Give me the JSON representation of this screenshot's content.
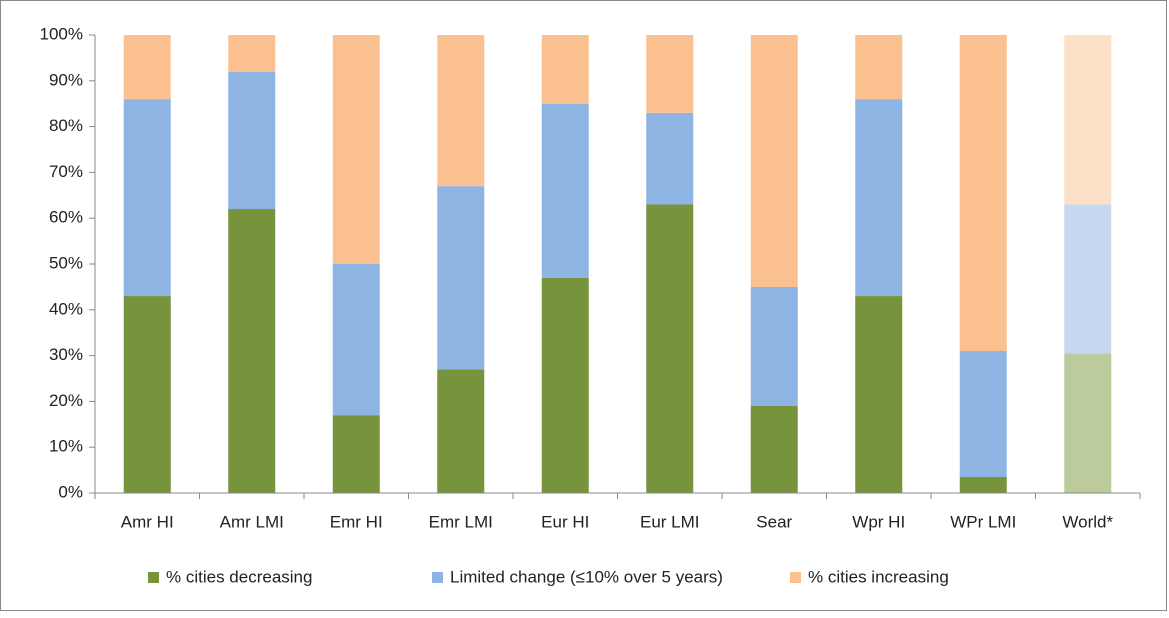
{
  "chart_data": {
    "type": "stacked_bar",
    "categories": [
      "Amr HI",
      "Amr LMI",
      "Emr HI",
      "Emr LMI",
      "Eur HI",
      "Eur LMI",
      "Sear",
      "Wpr HI",
      "WPr LMI",
      "World*"
    ],
    "series": [
      {
        "name": "% cities decreasing",
        "color": "#77933c",
        "colors": [
          "#77933c",
          "#77933c",
          "#77933c",
          "#77933c",
          "#77933c",
          "#77933c",
          "#77933c",
          "#77933c",
          "#77933c",
          "#bccb9b"
        ],
        "values": [
          43,
          62,
          17,
          27,
          47,
          63,
          19,
          43,
          3.5,
          30.5
        ]
      },
      {
        "name": "Limited change (≤10% over 5 years)",
        "color": "#8eb4e3",
        "colors": [
          "#8eb4e3",
          "#8eb4e3",
          "#8eb4e3",
          "#8eb4e3",
          "#8eb4e3",
          "#8eb4e3",
          "#8eb4e3",
          "#8eb4e3",
          "#8eb4e3",
          "#c6d9f1"
        ],
        "values": [
          43,
          30,
          33,
          40,
          38,
          20,
          26,
          43,
          27.5,
          32.5
        ]
      },
      {
        "name": "% cities increasing",
        "color": "#fac090",
        "colors": [
          "#fac090",
          "#fac090",
          "#fac090",
          "#fac090",
          "#fac090",
          "#fac090",
          "#fac090",
          "#fac090",
          "#fac090",
          "#fde0c8"
        ],
        "values": [
          14,
          8,
          50,
          33,
          15,
          17,
          55,
          14,
          69,
          37
        ]
      }
    ],
    "ylim": [
      0,
      100
    ],
    "yticks": [
      {
        "value": 0,
        "label": "0%"
      },
      {
        "value": 10,
        "label": "10%"
      },
      {
        "value": 20,
        "label": "20%"
      },
      {
        "value": 30,
        "label": "30%"
      },
      {
        "value": 40,
        "label": "40%"
      },
      {
        "value": 50,
        "label": "50%"
      },
      {
        "value": 60,
        "label": "60%"
      },
      {
        "value": 70,
        "label": "70%"
      },
      {
        "value": 80,
        "label": "80%"
      },
      {
        "value": 90,
        "label": "90%"
      },
      {
        "value": 100,
        "label": "100%"
      }
    ],
    "legend": "bottom"
  }
}
